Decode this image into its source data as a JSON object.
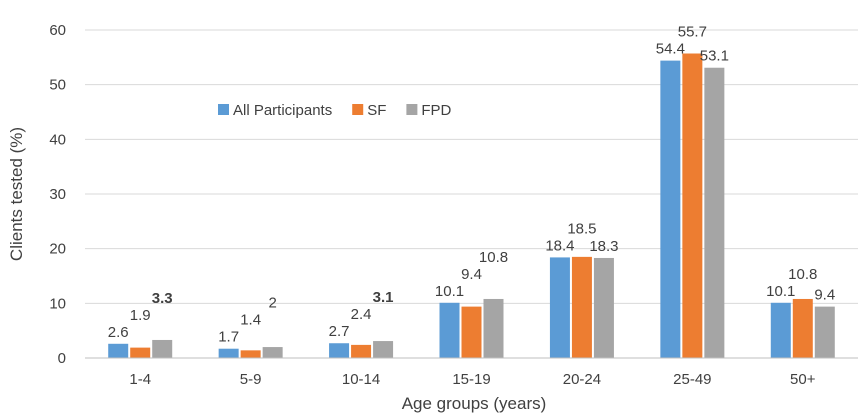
{
  "chart_data": {
    "type": "bar",
    "categories": [
      "1-4",
      "5-9",
      "10-14",
      "15-19",
      "20-24",
      "25-49",
      "50+"
    ],
    "series": [
      {
        "name": "All Participants",
        "color": "#5B9BD5",
        "values": [
          2.6,
          1.7,
          2.7,
          10.1,
          18.4,
          54.4,
          10.1
        ]
      },
      {
        "name": "SF",
        "color": "#ED7D31",
        "values": [
          1.9,
          1.4,
          2.4,
          9.4,
          18.5,
          55.7,
          10.8
        ]
      },
      {
        "name": "FPD",
        "color": "#A5A5A5",
        "values": [
          3.3,
          2,
          3.1,
          10.8,
          18.3,
          53.1,
          9.4
        ]
      }
    ],
    "data_labels": [
      [
        "2.6",
        "1.9",
        "3.3"
      ],
      [
        "1.7",
        "1.4",
        "2"
      ],
      [
        "2.7",
        "2.4",
        "3.1"
      ],
      [
        "10.1",
        "9.4",
        "10.8"
      ],
      [
        "18.4",
        "18.5",
        "18.3"
      ],
      [
        "54.4",
        "55.7",
        "53.1"
      ],
      [
        "10.1",
        "10.8",
        "9.4"
      ]
    ],
    "bold_labels": [
      [
        0,
        2
      ],
      [
        2,
        2
      ]
    ],
    "xlabel": "Age groups (years)",
    "ylabel": "Clients tested (%)",
    "ylim": [
      0,
      60
    ],
    "yticks": [
      0,
      10,
      20,
      30,
      40,
      50,
      60
    ],
    "grid": true,
    "legend_position": "top-left, inside plot"
  }
}
